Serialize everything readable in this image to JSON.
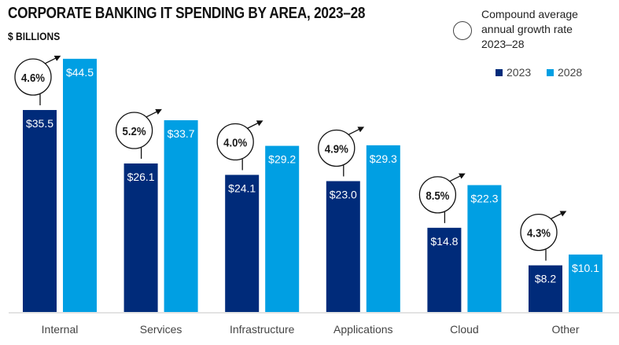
{
  "chart_data": {
    "type": "bar",
    "title": "CORPORATE BANKING IT SPENDING BY AREA, 2023–28",
    "subtitle": "$ BILLIONS",
    "xlabel": "",
    "ylabel": "$ Billions",
    "ylim": [
      0,
      44.5
    ],
    "grid": false,
    "legend_position": "top-right",
    "categories": [
      "Internal",
      "Services",
      "Infrastructure",
      "Applications",
      "Cloud",
      "Other"
    ],
    "series": [
      {
        "name": "2023",
        "color": "#002b7a",
        "values": [
          35.5,
          26.1,
          24.1,
          23.0,
          14.8,
          8.2
        ],
        "labels": [
          "$35.5",
          "$26.1",
          "$24.1",
          "$23.0",
          "$14.8",
          "$8.2"
        ]
      },
      {
        "name": "2028",
        "color": "#009fe3",
        "values": [
          44.5,
          33.7,
          29.2,
          29.3,
          22.3,
          10.1
        ],
        "labels": [
          "$44.5",
          "$33.7",
          "$29.2",
          "$29.3",
          "$22.3",
          "$10.1"
        ]
      }
    ],
    "cagr": {
      "label": "Compound average annual growth rate 2023–28",
      "label_lines": [
        "Compound average",
        "annual growth rate",
        "2023–28"
      ],
      "values": [
        4.6,
        5.2,
        4.0,
        4.9,
        8.5,
        4.3
      ],
      "labels": [
        "4.6%",
        "5.2%",
        "4.0%",
        "4.9%",
        "8.5%",
        "4.3%"
      ]
    }
  },
  "colors": {
    "bar_2023": "#002b7a",
    "bar_2028": "#009fe3",
    "cagr_text": "#1a1a1a",
    "axis": "#e3e3e3",
    "category_text": "#444444"
  }
}
